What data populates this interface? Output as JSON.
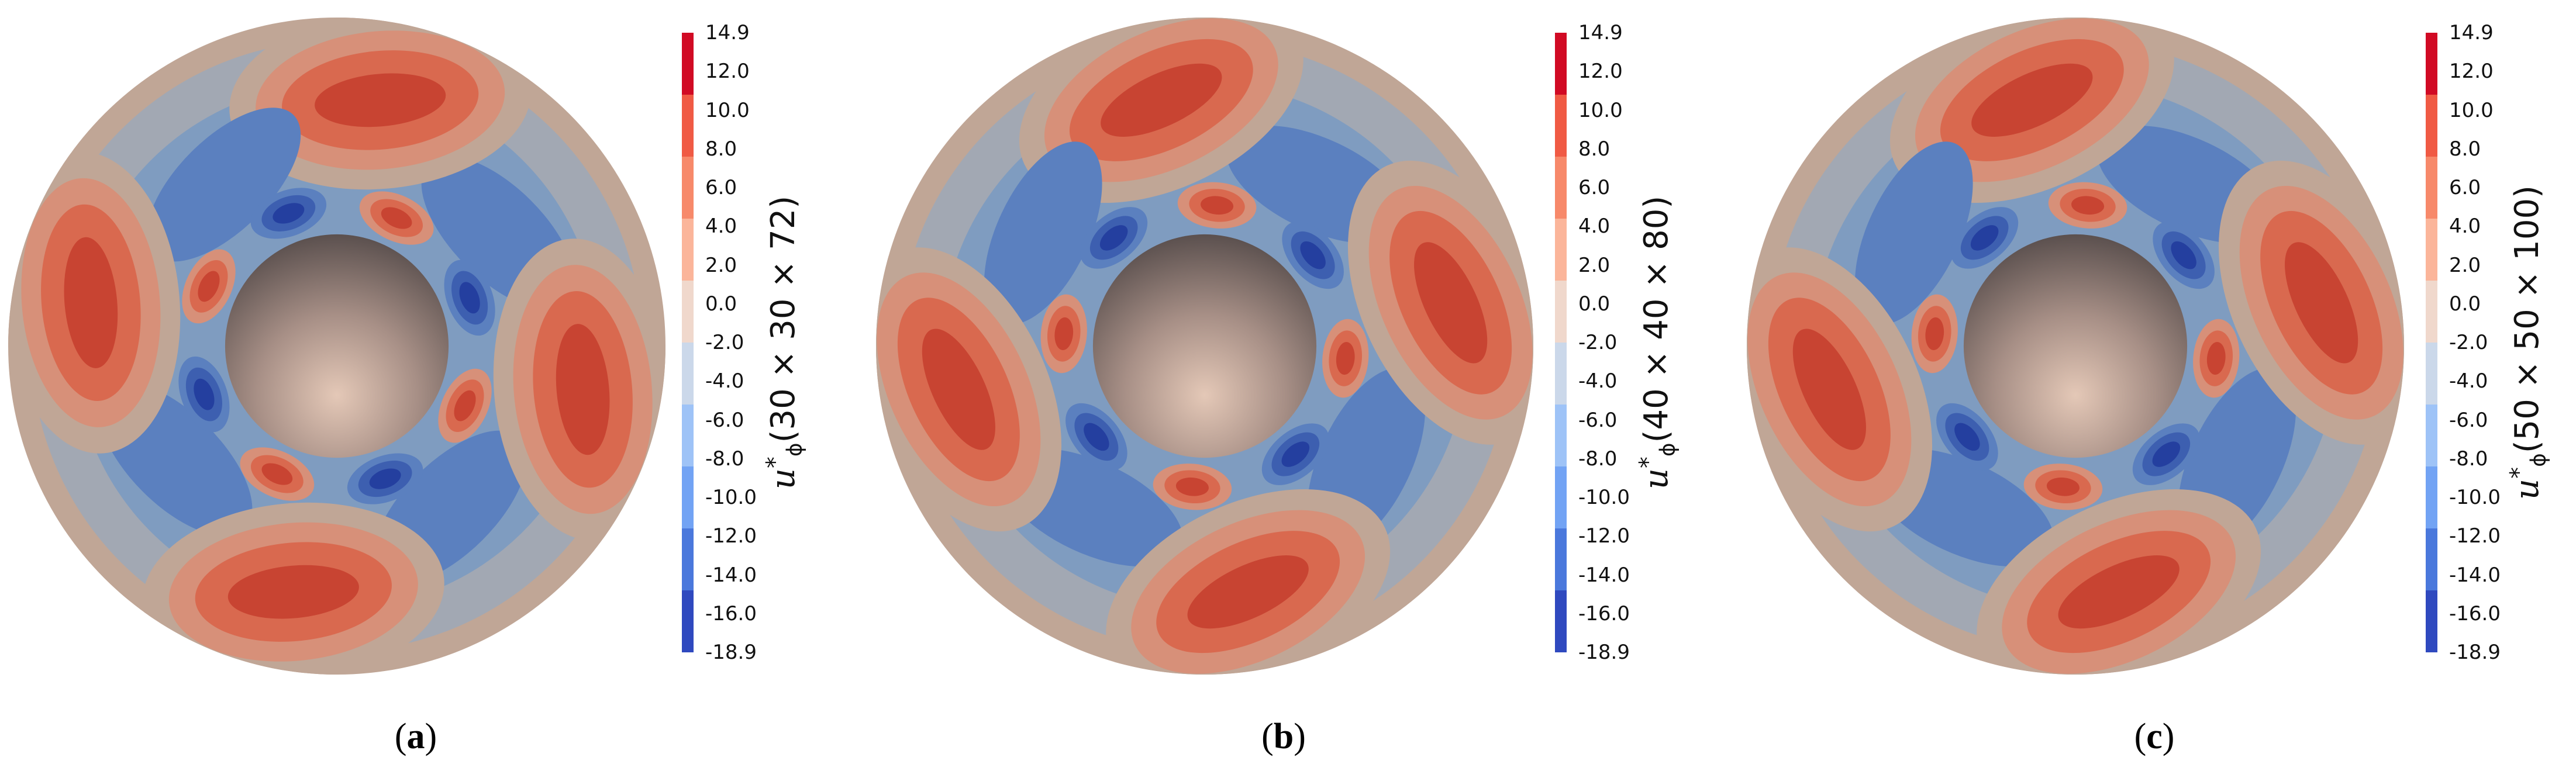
{
  "chart_data": {
    "type": "heatmap",
    "description_kind": "contour",
    "colorbar": {
      "ticks": [
        "14.9",
        "12.0",
        "10.0",
        "8.0",
        "6.0",
        "4.0",
        "2.0",
        "0.0",
        "-2.0",
        "-4.0",
        "-6.0",
        "-8.0",
        "-10.0",
        "-12.0",
        "-14.0",
        "-16.0",
        "-18.9"
      ],
      "range": [
        -18.9,
        14.9
      ],
      "band_colors": [
        "#d10a24",
        "#f05a44",
        "#f7896a",
        "#fbb59a",
        "#f0d8cc",
        "#cbd8ea",
        "#9ec3f7",
        "#72a3f4",
        "#4a78dc",
        "#2f49bf"
      ]
    },
    "panels": [
      {
        "label": "a",
        "variable": "u",
        "subscript": "ϕ",
        "superscript": "*",
        "grid": "(30 × 30 × 72)",
        "pattern_rotation_deg": 0
      },
      {
        "label": "b",
        "variable": "u",
        "subscript": "ϕ",
        "superscript": "*",
        "grid": "(40 × 40 × 80)",
        "pattern_rotation_deg": -20
      },
      {
        "label": "c",
        "variable": "u",
        "subscript": "ϕ",
        "superscript": "*",
        "grid": "(50 × 50 × 100)",
        "pattern_rotation_deg": -20
      }
    ]
  }
}
